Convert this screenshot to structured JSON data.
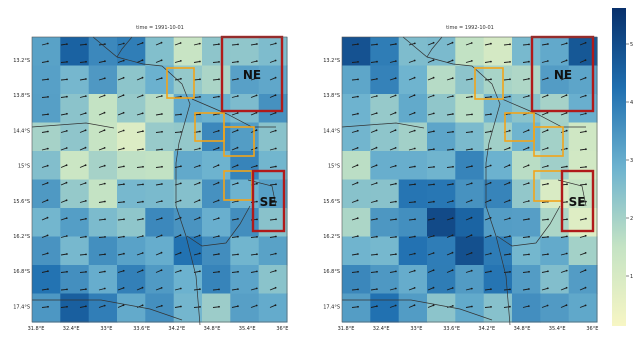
{
  "panels": [
    {
      "title": "time = 1991-10-01",
      "region_labels": [
        "NE",
        "SE"
      ]
    },
    {
      "title": "time = 1992-10-01",
      "region_labels": [
        "NE",
        "SE"
      ]
    }
  ],
  "axes": {
    "y_ticks": [
      "13.2°S",
      "13.8°S",
      "14.4°S",
      "15°S",
      "15.6°S",
      "16.2°S",
      "16.8°S",
      "17.4°S"
    ],
    "x_ticks": [
      "31.8°E",
      "32.4°E",
      "33°E",
      "33.6°E",
      "34.2°E",
      "34.8°E",
      "35.4°E",
      "36°E"
    ]
  },
  "colorbar": {
    "ticks": [
      "5",
      "4",
      "3",
      "2",
      "1"
    ],
    "low_color": "#f7f6c4",
    "mid_color": "#6cb2cf",
    "high_color": "#08306b"
  },
  "region_box_color": "#b01a1a",
  "subregion_box_color": "#f2a41a"
}
